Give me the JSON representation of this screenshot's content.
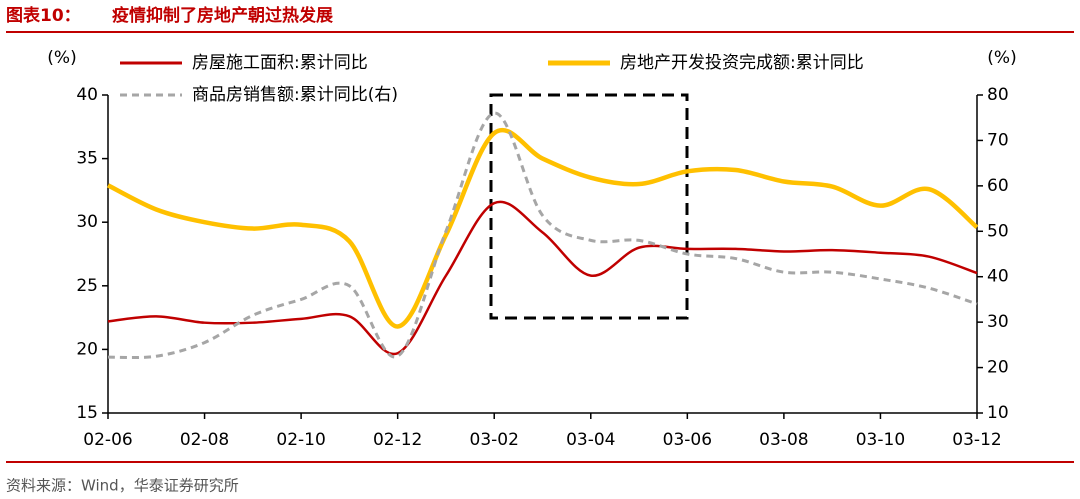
{
  "header": {
    "label": "图表10：",
    "title": "疫情抑制了房地产朝过热发展"
  },
  "chart_data": {
    "type": "line",
    "categories": [
      "02-06",
      null,
      "02-08",
      null,
      "02-10",
      null,
      "02-12",
      null,
      "03-02",
      null,
      "03-04",
      null,
      "03-06",
      null,
      "03-08",
      null,
      "03-10",
      null,
      "03-12"
    ],
    "ylabel": "(%)",
    "y2label": "(%)",
    "ylim": [
      15,
      40
    ],
    "yticks": [
      15,
      20,
      25,
      30,
      35,
      40
    ],
    "y2lim": [
      10,
      80
    ],
    "y2ticks": [
      10,
      20,
      30,
      40,
      50,
      60,
      70,
      80
    ],
    "series": [
      {
        "name": "房屋施工面积:累计同比",
        "color": "#c00000",
        "values": [
          22.2,
          22.6,
          22.1,
          22.1,
          22.4,
          22.6,
          19.7,
          25.8,
          31.5,
          29.2,
          25.8,
          28.0,
          27.9,
          27.9,
          27.7,
          27.8,
          27.6,
          27.3,
          26.0
        ]
      },
      {
        "name": "房地产开发投资完成额:累计同比",
        "color": "#ffc000",
        "values": [
          32.9,
          31.0,
          30.0,
          29.5,
          29.8,
          28.5,
          21.8,
          29.0,
          37.0,
          35.0,
          33.5,
          33.0,
          34.0,
          34.1,
          33.2,
          32.8,
          31.3,
          32.6,
          29.6
        ]
      },
      {
        "name": "商品房销售额:累计同比(右)",
        "color": "#a6a6a6",
        "axis": "y2",
        "dashed": true,
        "values": [
          22.3,
          22.5,
          25.5,
          31.5,
          35.0,
          38.0,
          22.5,
          50.0,
          76.0,
          53.5,
          48.0,
          48.0,
          45.0,
          44.0,
          41.0,
          41.0,
          39.5,
          37.5,
          34.0
        ]
      }
    ]
  },
  "footer": {
    "source": "资料来源：Wind，华泰证券研究所"
  }
}
